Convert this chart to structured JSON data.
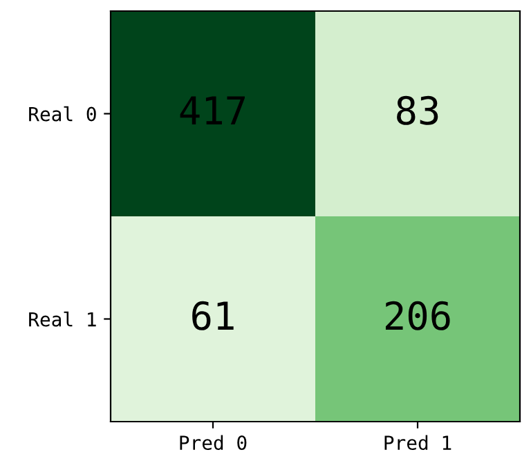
{
  "chart_data": {
    "type": "heatmap",
    "categories": [
      "Pred 0",
      "Pred 1"
    ],
    "y_categories": [
      "Real 0",
      "Real 1"
    ],
    "cells": [
      [
        417,
        83
      ],
      [
        61,
        206
      ]
    ],
    "data_labels": true
  }
}
